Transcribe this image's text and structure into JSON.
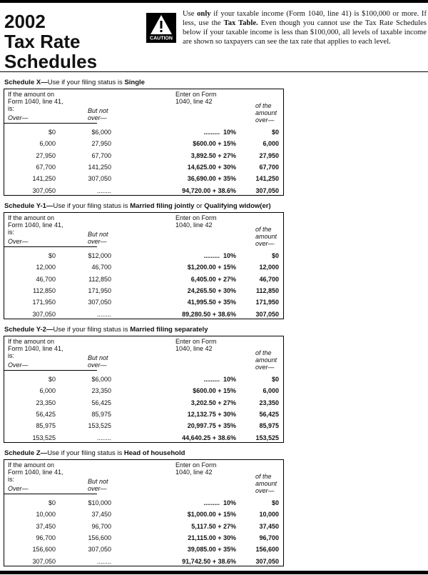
{
  "header": {
    "title": [
      "2002",
      "Tax Rate",
      "Schedules"
    ],
    "caution": "CAUTION",
    "intro": [
      "Use ",
      "only",
      " if your taxable income (Form 1040, line 41) is $100,000 or more. If less, use the ",
      "Tax Table.",
      " Even though you cannot use the Tax Rate Schedules below if your taxable income is less than $100,000, all levels of taxable income are shown so taxpayers can see the tax rate that applies to each level."
    ]
  },
  "schedules": [
    {
      "heading": [
        "Schedule X—",
        "Use if your filing status is ",
        "Single"
      ],
      "columns": {
        "over_intro": "If the amount on Form 1040, line 41, is:",
        "over": "Over—",
        "but_not_over": "But not over—",
        "enter": "Enter on Form 1040, line 42",
        "of_amount": "of the amount over—"
      },
      "rows": [
        [
          "$0",
          "$6,000",
          ".........  10%",
          "$0"
        ],
        [
          "6,000",
          "27,950",
          "$600.00 + 15%",
          "6,000"
        ],
        [
          "27,950",
          "67,700",
          "3,892.50 + 27%",
          "27,950"
        ],
        [
          "67,700",
          "141,250",
          "14,625.00 + 30%",
          "67,700"
        ],
        [
          "141,250",
          "307,050",
          "36,690.00 + 35%",
          "141,250"
        ],
        [
          "307,050",
          "........",
          "94,720.00 + 38.6%",
          "307,050"
        ]
      ]
    },
    {
      "heading": [
        "Schedule Y-1—",
        "Use if your filing status is ",
        "Married filing jointly",
        " or ",
        "Qualifying widow(er)"
      ],
      "columns": {
        "over_intro": "If the amount on Form 1040, line 41, is:",
        "over": "Over—",
        "but_not_over": "But not over—",
        "enter": "Enter on Form 1040, line 42",
        "of_amount": "of the amount over—"
      },
      "rows": [
        [
          "$0",
          "$12,000",
          ".........  10%",
          "$0"
        ],
        [
          "12,000",
          "46,700",
          "$1,200.00 + 15%",
          "12,000"
        ],
        [
          "46,700",
          "112,850",
          "6,405.00 + 27%",
          "46,700"
        ],
        [
          "112,850",
          "171,950",
          "24,265.50 + 30%",
          "112,850"
        ],
        [
          "171,950",
          "307,050",
          "41,995.50 + 35%",
          "171,950"
        ],
        [
          "307,050",
          "........",
          "89,280.50 + 38.6%",
          "307,050"
        ]
      ]
    },
    {
      "heading": [
        "Schedule Y-2—",
        "Use if your filing status is ",
        "Married filing separately"
      ],
      "columns": {
        "over_intro": "If the amount on Form 1040, line 41, is:",
        "over": "Over—",
        "but_not_over": "But not over—",
        "enter": "Enter on Form 1040, line 42",
        "of_amount": "of the amount over—"
      },
      "rows": [
        [
          "$0",
          "$6,000",
          ".........  10%",
          "$0"
        ],
        [
          "6,000",
          "23,350",
          "$600.00 + 15%",
          "6,000"
        ],
        [
          "23,350",
          "56,425",
          "3,202.50 + 27%",
          "23,350"
        ],
        [
          "56,425",
          "85,975",
          "12,132.75 + 30%",
          "56,425"
        ],
        [
          "85,975",
          "153,525",
          "20,997.75 + 35%",
          "85,975"
        ],
        [
          "153,525",
          "........",
          "44,640.25 + 38.6%",
          "153,525"
        ]
      ]
    },
    {
      "heading": [
        "Schedule Z—",
        "Use if your filing status is ",
        "Head of household"
      ],
      "columns": {
        "over_intro": "If the amount on Form 1040, line 41, is:",
        "over": "Over—",
        "but_not_over": "But not over—",
        "enter": "Enter on Form 1040, line 42",
        "of_amount": "of the amount over—"
      },
      "rows": [
        [
          "$0",
          "$10,000",
          ".........  10%",
          "$0"
        ],
        [
          "10,000",
          "37,450",
          "$1,000.00 + 15%",
          "10,000"
        ],
        [
          "37,450",
          "96,700",
          "5,117.50 + 27%",
          "37,450"
        ],
        [
          "96,700",
          "156,600",
          "21,115.00 + 30%",
          "96,700"
        ],
        [
          "156,600",
          "307,050",
          "39,085.00 + 35%",
          "156,600"
        ],
        [
          "307,050",
          "........",
          "91,742.50 + 38.6%",
          "307,050"
        ]
      ]
    }
  ]
}
